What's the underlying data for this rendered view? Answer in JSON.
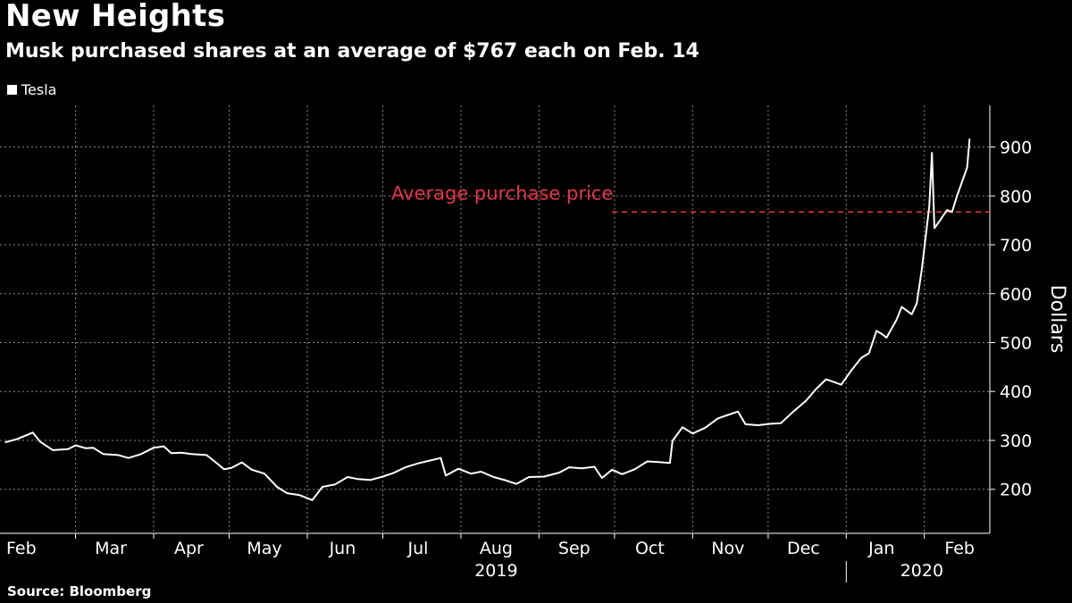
{
  "title": "New Heights",
  "subtitle": "Musk purchased shares at an average of $767 each on Feb. 14",
  "source": "Source: Bloomberg",
  "colors": {
    "background": "#000000",
    "line": "#ffffff",
    "annotation": "#e8324a",
    "grid": "#8a8a8a"
  },
  "chart_data": {
    "type": "line",
    "series": [
      {
        "name": "Tesla",
        "points": [
          [
            "2019-02-01",
            296
          ],
          [
            "2019-02-06",
            303
          ],
          [
            "2019-02-12",
            316
          ],
          [
            "2019-02-15",
            297
          ],
          [
            "2019-02-20",
            280
          ],
          [
            "2019-02-26",
            282
          ],
          [
            "2019-03-01",
            290
          ],
          [
            "2019-03-05",
            284
          ],
          [
            "2019-03-08",
            285
          ],
          [
            "2019-03-12",
            272
          ],
          [
            "2019-03-18",
            270
          ],
          [
            "2019-03-22",
            264
          ],
          [
            "2019-03-27",
            272
          ],
          [
            "2019-04-01",
            285
          ],
          [
            "2019-04-05",
            288
          ],
          [
            "2019-04-08",
            274
          ],
          [
            "2019-04-12",
            275
          ],
          [
            "2019-04-16",
            272
          ],
          [
            "2019-04-22",
            270
          ],
          [
            "2019-04-25",
            258
          ],
          [
            "2019-04-29",
            241
          ],
          [
            "2019-05-02",
            244
          ],
          [
            "2019-05-06",
            255
          ],
          [
            "2019-05-10",
            240
          ],
          [
            "2019-05-15",
            232
          ],
          [
            "2019-05-20",
            205
          ],
          [
            "2019-05-24",
            192
          ],
          [
            "2019-05-29",
            188
          ],
          [
            "2019-06-03",
            178
          ],
          [
            "2019-06-07",
            205
          ],
          [
            "2019-06-12",
            210
          ],
          [
            "2019-06-17",
            225
          ],
          [
            "2019-06-21",
            221
          ],
          [
            "2019-06-26",
            219
          ],
          [
            "2019-07-01",
            226
          ],
          [
            "2019-07-05",
            233
          ],
          [
            "2019-07-10",
            245
          ],
          [
            "2019-07-15",
            253
          ],
          [
            "2019-07-19",
            258
          ],
          [
            "2019-07-24",
            264
          ],
          [
            "2019-07-26",
            228
          ],
          [
            "2019-07-31",
            242
          ],
          [
            "2019-08-05",
            232
          ],
          [
            "2019-08-09",
            236
          ],
          [
            "2019-08-14",
            225
          ],
          [
            "2019-08-19",
            218
          ],
          [
            "2019-08-23",
            211
          ],
          [
            "2019-08-28",
            225
          ],
          [
            "2019-09-03",
            226
          ],
          [
            "2019-09-09",
            234
          ],
          [
            "2019-09-13",
            245
          ],
          [
            "2019-09-18",
            243
          ],
          [
            "2019-09-23",
            246
          ],
          [
            "2019-09-26",
            223
          ],
          [
            "2019-09-30",
            240
          ],
          [
            "2019-10-04",
            231
          ],
          [
            "2019-10-09",
            241
          ],
          [
            "2019-10-14",
            257
          ],
          [
            "2019-10-18",
            256
          ],
          [
            "2019-10-23",
            254
          ],
          [
            "2019-10-24",
            299
          ],
          [
            "2019-10-28",
            327
          ],
          [
            "2019-11-01",
            314
          ],
          [
            "2019-11-06",
            326
          ],
          [
            "2019-11-11",
            345
          ],
          [
            "2019-11-15",
            352
          ],
          [
            "2019-11-19",
            359
          ],
          [
            "2019-11-22",
            333
          ],
          [
            "2019-11-27",
            331
          ],
          [
            "2019-12-02",
            334
          ],
          [
            "2019-12-06",
            335
          ],
          [
            "2019-12-11",
            359
          ],
          [
            "2019-12-16",
            381
          ],
          [
            "2019-12-20",
            405
          ],
          [
            "2019-12-24",
            425
          ],
          [
            "2019-12-30",
            414
          ],
          [
            "2020-01-03",
            443
          ],
          [
            "2020-01-07",
            469
          ],
          [
            "2020-01-10",
            478
          ],
          [
            "2020-01-13",
            524
          ],
          [
            "2020-01-15",
            518
          ],
          [
            "2020-01-17",
            510
          ],
          [
            "2020-01-21",
            547
          ],
          [
            "2020-01-23",
            573
          ],
          [
            "2020-01-27",
            558
          ],
          [
            "2020-01-29",
            580
          ],
          [
            "2020-01-31",
            650
          ],
          [
            "2020-02-03",
            780
          ],
          [
            "2020-02-04",
            888
          ],
          [
            "2020-02-05",
            734
          ],
          [
            "2020-02-07",
            748
          ],
          [
            "2020-02-10",
            771
          ],
          [
            "2020-02-12",
            767
          ],
          [
            "2020-02-14",
            800
          ],
          [
            "2020-02-18",
            858
          ],
          [
            "2020-02-19",
            917
          ]
        ]
      }
    ],
    "x_range": [
      "2019-01-30",
      "2020-02-27"
    ],
    "ylim": [
      110,
      985
    ],
    "ylabel": "Dollars",
    "yticks": [
      200,
      300,
      400,
      500,
      600,
      700,
      800,
      900
    ],
    "xticks": [
      {
        "label": "Feb",
        "date": "2019-02-15"
      },
      {
        "label": "Mar",
        "date": "2019-03-15"
      },
      {
        "label": "Apr",
        "date": "2019-04-15"
      },
      {
        "label": "May",
        "date": "2019-05-15"
      },
      {
        "label": "Jun",
        "date": "2019-06-15"
      },
      {
        "label": "Jul",
        "date": "2019-07-15"
      },
      {
        "label": "Aug",
        "date": "2019-08-15"
      },
      {
        "label": "Sep",
        "date": "2019-09-15"
      },
      {
        "label": "Oct",
        "date": "2019-10-15"
      },
      {
        "label": "Nov",
        "date": "2019-11-15"
      },
      {
        "label": "Dec",
        "date": "2019-12-15"
      },
      {
        "label": "Jan",
        "date": "2020-01-15"
      },
      {
        "label": "Feb",
        "date": "2020-02-15"
      }
    ],
    "gridlines": [
      "2019-03-01",
      "2019-04-01",
      "2019-05-01",
      "2019-06-01",
      "2019-07-01",
      "2019-08-01",
      "2019-09-01",
      "2019-10-01",
      "2019-11-01",
      "2019-12-01",
      "2020-01-01",
      "2020-02-01"
    ],
    "year_labels": [
      {
        "label": "2019",
        "date": "2019-08-15"
      },
      {
        "label": "2020",
        "date": "2020-01-31"
      }
    ],
    "year_divider": "2020-01-01",
    "grid": true,
    "legend": "top-left",
    "annotations": [
      {
        "text": "Average purchase price",
        "y": 767,
        "x_start": "2019-09-30",
        "x_end": "2020-02-27"
      }
    ]
  }
}
